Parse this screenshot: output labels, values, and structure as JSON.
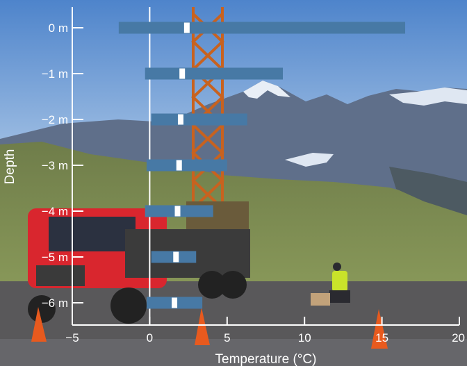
{
  "chart_data": {
    "type": "bar",
    "chart_kind": "range bars with mean marker over a photograph background",
    "background_photo": "drilling rig on a red truck at a mountain site, worker kneeling on gravel, orange traffic cones, snowy peaks under blue sky",
    "xlabel": "Temperature (°C)",
    "ylabel": "Depth",
    "xlim": [
      -5,
      20
    ],
    "x_ticks": [
      -5,
      0,
      5,
      10,
      15,
      20
    ],
    "x_tick_labels": [
      "−5",
      "0",
      "5",
      "10",
      "15",
      "20"
    ],
    "y_tick_labels": [
      "0 m",
      "−1 m",
      "−2 m",
      "−3 m",
      "−4 m",
      "−5 m",
      "−6 m"
    ],
    "depths": [
      0,
      -1,
      -2,
      -3,
      -4,
      -5,
      -6
    ],
    "ranges": [
      {
        "min": -2.0,
        "max": 16.5,
        "mean": 2.4
      },
      {
        "min": -0.3,
        "max": 8.6,
        "mean": 2.1
      },
      {
        "min": 0.1,
        "max": 6.3,
        "mean": 2.0
      },
      {
        "min": -0.2,
        "max": 5.0,
        "mean": 1.9
      },
      {
        "min": -0.3,
        "max": 4.1,
        "mean": 1.8
      },
      {
        "min": 0.1,
        "max": 3.0,
        "mean": 1.7
      },
      {
        "min": -0.2,
        "max": 3.4,
        "mean": 1.6
      }
    ],
    "grid": false,
    "colors": {
      "bar": "#4779a5",
      "marker": "#ffffff",
      "axis": "#ffffff",
      "sky_top": "#4e84cb",
      "sky_bottom": "#aac6e6",
      "mountain": "#5f6f8a",
      "snow": "#e8eef6",
      "grass": "#7b8b52",
      "ground": "#59585a",
      "truck": "#d9262e",
      "rig": "#c8621f",
      "cone": "#e85a1e",
      "vest": "#c9e32a"
    }
  }
}
